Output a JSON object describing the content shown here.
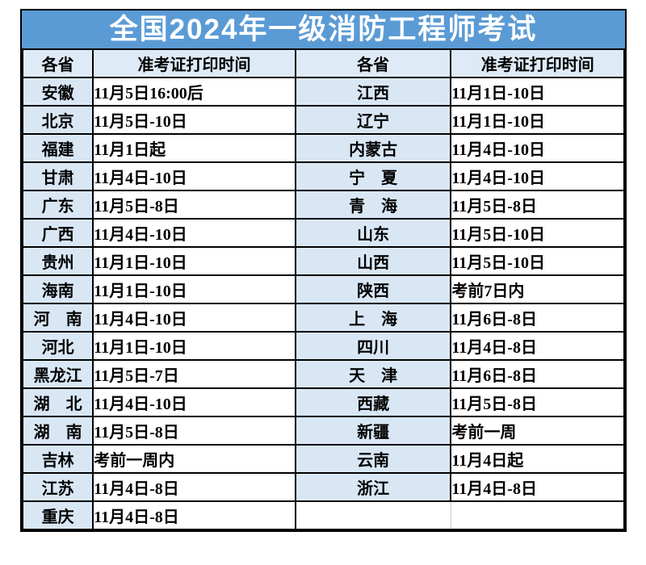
{
  "title": "全国2024年一级消防工程师考试",
  "columns": [
    "各省",
    "准考证打印时间",
    "各省",
    "准考证打印时间"
  ],
  "colors": {
    "title_bg": "#5B9BD5",
    "title_text": "#FFFFFF",
    "header_cell_bg": "#DEEBF7",
    "province_cell_bg": "#D9E7F5",
    "time_cell_bg": "#FFFFFF",
    "border": "#000000",
    "text": "#000000"
  },
  "rows": [
    {
      "p1": "安徽",
      "t1": "11月5日16:00后",
      "p2": "江西",
      "t2": "11月1日-10日"
    },
    {
      "p1": "北京",
      "t1": "11月5日-10日",
      "p2": "辽宁",
      "t2": "11月1日-10日"
    },
    {
      "p1": "福建",
      "t1": "11月1日起",
      "p2": "内蒙古",
      "t2": "11月4日-10日"
    },
    {
      "p1": "甘肃",
      "t1": "11月4日-10日",
      "p2": "宁　夏",
      "t2": "11月4日-10日"
    },
    {
      "p1": "广东",
      "t1": "11月5日-8日",
      "p2": "青　海",
      "t2": "11月5日-8日"
    },
    {
      "p1": "广西",
      "t1": "11月4日-10日",
      "p2": "山东",
      "t2": "11月5日-10日"
    },
    {
      "p1": "贵州",
      "t1": "11月1日-10日",
      "p2": "山西",
      "t2": "11月5日-10日"
    },
    {
      "p1": "海南",
      "t1": "11月1日-10日",
      "p2": "陕西",
      "t2": "考前7日内"
    },
    {
      "p1": "河　南",
      "t1": "11月4日-10日",
      "p2": "上　海",
      "t2": "11月6日-8日"
    },
    {
      "p1": "河北",
      "t1": "11月1日-10日",
      "p2": "四川",
      "t2": "11月4日-8日"
    },
    {
      "p1": "黑龙江",
      "t1": "11月5日-7日",
      "p2": "天　津",
      "t2": "11月6日-8日"
    },
    {
      "p1": "湖　北",
      "t1": "11月4日-10日",
      "p2": "西藏",
      "t2": "11月5日-8日"
    },
    {
      "p1": "湖　南",
      "t1": "11月5日-8日",
      "p2": "新疆",
      "t2": "考前一周"
    },
    {
      "p1": "吉林",
      "t1": "考前一周内",
      "p2": "云南",
      "t2": "11月4日起"
    },
    {
      "p1": "江苏",
      "t1": "11月4日-8日",
      "p2": "浙江",
      "t2": "11月4日-8日"
    },
    {
      "p1": "重庆",
      "t1": "11月4日-8日",
      "p2": "",
      "t2": ""
    }
  ]
}
